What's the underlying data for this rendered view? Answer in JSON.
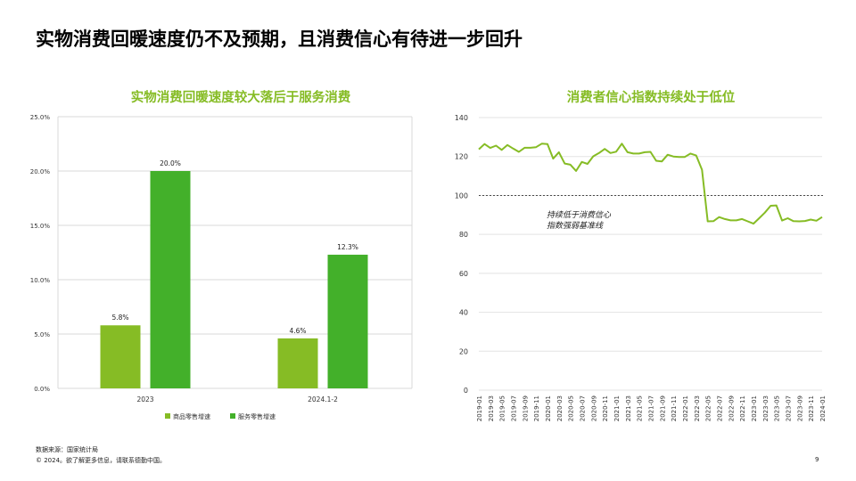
{
  "slide": {
    "title": "实物消费回暖速度仍不及预期，且消费信心有待进一步回升",
    "source": "数据来源：国家统计局",
    "copyright": "© 2024。欲了解更多信息，请联系德勤中国。",
    "page_number": "9"
  },
  "colors": {
    "goods": "#86bc25",
    "services": "#43b02a",
    "line": "#86bc25",
    "title": "#86bc25"
  },
  "chart_data": [
    {
      "type": "bar",
      "title": "实物消费回暖速度较大落后于服务消费",
      "categories": [
        "2023",
        "2024.1-2"
      ],
      "series": [
        {
          "name": "商品零售增速",
          "values": [
            5.8,
            4.6
          ],
          "labels": [
            "5.8%",
            "4.6%"
          ]
        },
        {
          "name": "服务零售增速",
          "values": [
            20.0,
            12.3
          ],
          "labels": [
            "20.0%",
            "12.3%"
          ]
        }
      ],
      "ylim": [
        0,
        25
      ],
      "yticks": [
        0,
        5,
        10,
        15,
        20,
        25
      ],
      "ytick_labels": [
        "0.0%",
        "5.0%",
        "10.0%",
        "15.0%",
        "20.0%",
        "25.0%"
      ],
      "grid": true,
      "legend": "bottom"
    },
    {
      "type": "line",
      "title": "消费者信心指数持续处于低位",
      "x_labels": [
        "2019-01",
        "2019-03",
        "2019-05",
        "2019-07",
        "2019-09",
        "2019-11",
        "2020-01",
        "2020-03",
        "2020-05",
        "2020-07",
        "2020-09",
        "2020-11",
        "2021-01",
        "2021-03",
        "2021-05",
        "2021-07",
        "2021-09",
        "2021-11",
        "2022-01",
        "2022-03",
        "2022-05",
        "2022-07",
        "2022-09",
        "2022-11",
        "2023-01",
        "2023-03",
        "2023-05",
        "2023-07",
        "2023-09",
        "2023-11",
        "2024-01"
      ],
      "values": [
        123.7,
        126.4,
        124.4,
        125.6,
        123.4,
        125.9,
        124.1,
        122.4,
        124.5,
        124.5,
        124.8,
        126.6,
        126.4,
        118.9,
        122.2,
        116.4,
        115.8,
        112.6,
        117.2,
        116.2,
        120.1,
        121.8,
        123.9,
        121.8,
        122.5,
        126.6,
        122.2,
        121.5,
        121.5,
        122.2,
        122.4,
        117.8,
        117.5,
        120.9,
        120.0,
        119.8,
        119.8,
        121.5,
        120.5,
        113.2,
        86.7,
        86.8,
        88.9,
        87.9,
        87.2,
        87.2,
        87.9,
        86.7,
        85.5,
        88.3,
        91.2,
        94.7,
        94.9,
        87.1,
        88.3,
        86.8,
        86.7,
        86.9,
        87.6,
        87.0,
        88.9
      ],
      "ylim": [
        0,
        140
      ],
      "yticks": [
        0,
        20,
        40,
        60,
        80,
        100,
        120,
        140
      ],
      "reference_line": 100,
      "annotation": [
        "持续低于消费信心",
        "指数强弱基准线"
      ],
      "grid": true
    }
  ]
}
